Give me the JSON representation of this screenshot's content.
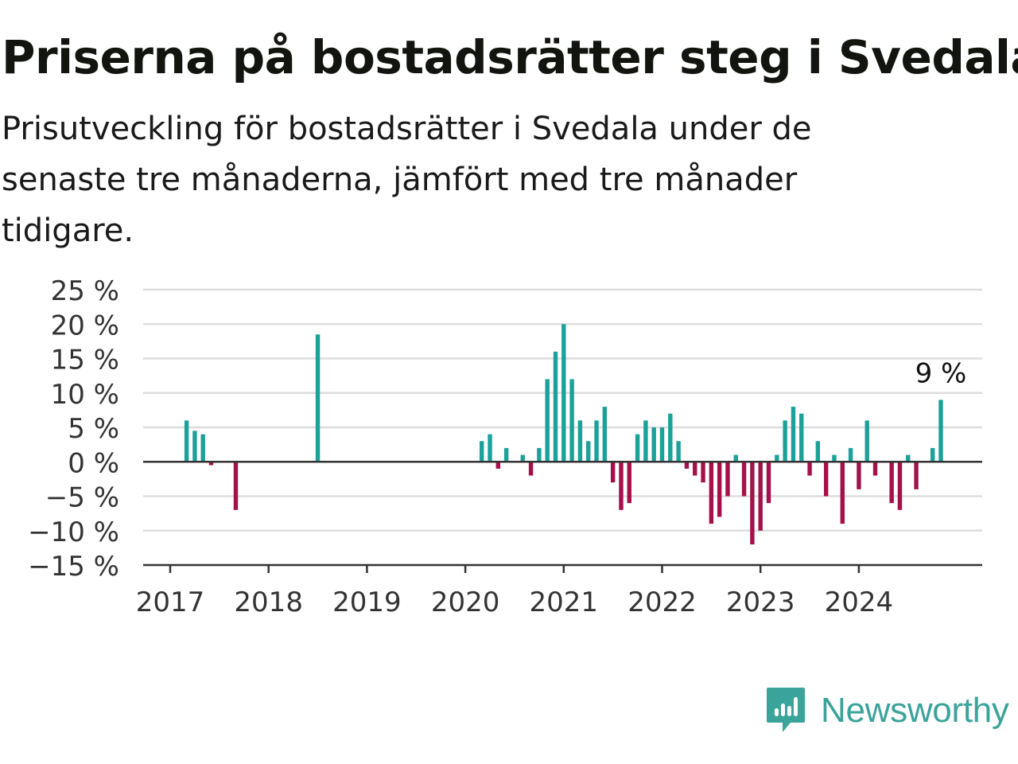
{
  "title": "Priserna på bostadsrätter steg i Svedala",
  "subtitle": "Prisutveckling för bostadsrätter i Svedala under de senaste tre månaderna, jämfört med tre månader tidigare.",
  "brand": {
    "name": "Newsworthy",
    "color": "#3aa39a"
  },
  "colors": {
    "positive": "#1aa199",
    "negative": "#a3104a",
    "grid": "#dddddd",
    "zero_line": "#333333"
  },
  "chart_data": {
    "type": "bar",
    "title": "Priserna på bostadsrätter steg i Svedala",
    "xlabel": "",
    "ylabel": "",
    "ylim": [
      -15,
      25
    ],
    "y_ticks": [
      25,
      20,
      15,
      10,
      5,
      0,
      -5,
      -10,
      -15
    ],
    "y_tick_labels": [
      "25 %",
      "20 %",
      "15 %",
      "10 %",
      "5 %",
      "0 %",
      "−5 %",
      "−10 %",
      "−15 %"
    ],
    "x_ticks": [
      2017,
      2018,
      2019,
      2020,
      2021,
      2022,
      2023,
      2024
    ],
    "x_tick_labels": [
      "2017",
      "2018",
      "2019",
      "2020",
      "2021",
      "2022",
      "2023",
      "2024"
    ],
    "grid": true,
    "annotation": {
      "x": "2024-11",
      "value": 9,
      "label": "9 %"
    },
    "x": [
      "2017-03",
      "2017-04",
      "2017-05",
      "2017-06",
      "2017-09",
      "2018-07",
      "2020-03",
      "2020-04",
      "2020-05",
      "2020-06",
      "2020-08",
      "2020-09",
      "2020-10",
      "2020-11",
      "2020-12",
      "2021-01",
      "2021-02",
      "2021-03",
      "2021-04",
      "2021-05",
      "2021-06",
      "2021-07",
      "2021-08",
      "2021-09",
      "2021-10",
      "2021-11",
      "2021-12",
      "2022-01",
      "2022-02",
      "2022-03",
      "2022-04",
      "2022-05",
      "2022-06",
      "2022-07",
      "2022-08",
      "2022-09",
      "2022-10",
      "2022-11",
      "2022-12",
      "2023-01",
      "2023-02",
      "2023-03",
      "2023-04",
      "2023-05",
      "2023-06",
      "2023-07",
      "2023-08",
      "2023-09",
      "2023-10",
      "2023-11",
      "2023-12",
      "2024-01",
      "2024-02",
      "2024-03",
      "2024-05",
      "2024-06",
      "2024-07",
      "2024-08",
      "2024-10",
      "2024-11"
    ],
    "values": [
      6,
      4.5,
      4,
      -0.5,
      -7,
      18.5,
      3,
      4,
      -1,
      2,
      1,
      -2,
      2,
      12,
      16,
      20,
      12,
      6,
      3,
      6,
      8,
      -3,
      -7,
      -6,
      4,
      6,
      5,
      5,
      7,
      3,
      -1,
      -2,
      -3,
      -9,
      -8,
      -5,
      1,
      -5,
      -12,
      -10,
      -6,
      1,
      6,
      8,
      7,
      -2,
      3,
      -5,
      1,
      -9,
      2,
      -4,
      6,
      -2,
      -6,
      -7,
      1,
      -4,
      2,
      9
    ]
  }
}
